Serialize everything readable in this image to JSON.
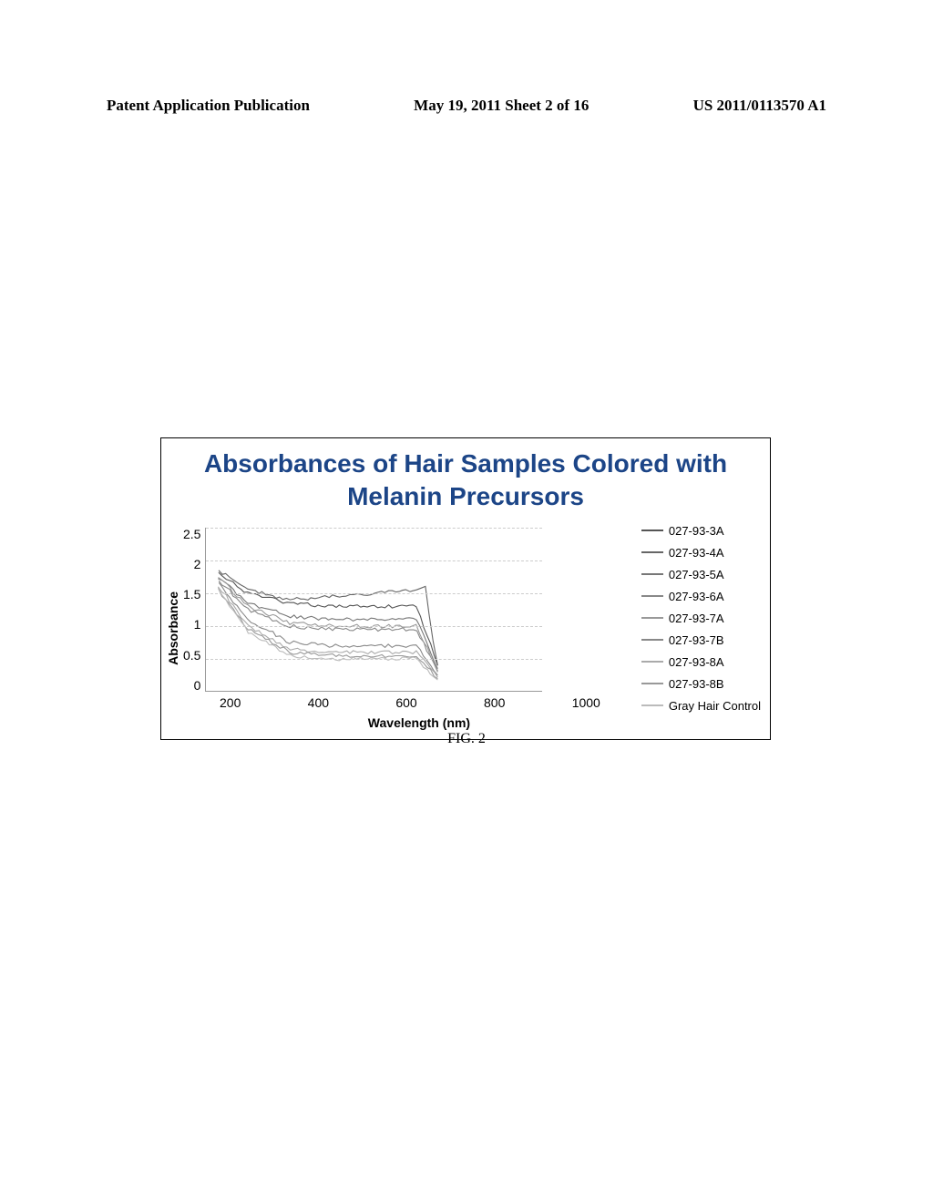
{
  "header": {
    "left": "Patent Application Publication",
    "center": "May 19, 2011  Sheet 2 of 16",
    "right": "US 2011/0113570 A1"
  },
  "figure": {
    "caption": "FIG. 2",
    "chart": {
      "type": "line",
      "title": "Absorbances of Hair Samples Colored with Melanin Precursors",
      "title_color": "#1c4587",
      "title_fontsize": 28,
      "xlabel": "Wavelength (nm)",
      "ylabel": "Absorbance",
      "label_fontsize": 14,
      "xlim": [
        200,
        1000
      ],
      "ylim": [
        0,
        2.5
      ],
      "xticks": [
        "200",
        "400",
        "600",
        "800",
        "1000"
      ],
      "yticks": [
        "2.5",
        "2",
        "1.5",
        "1",
        "0.5",
        "0"
      ],
      "xtick_values": [
        200,
        400,
        600,
        800,
        1000
      ],
      "ytick_values": [
        2.5,
        2,
        1.5,
        1,
        0.5,
        0
      ],
      "grid_color": "#cccccc",
      "border_color": "#000000",
      "background_color": "#ffffff",
      "series": [
        {
          "label": "027-93-3A",
          "color": "#555555",
          "data": [
            [
              230,
              1.8
            ],
            [
              300,
              1.5
            ],
            [
              400,
              1.35
            ],
            [
              500,
              1.3
            ],
            [
              600,
              1.3
            ],
            [
              700,
              1.3
            ],
            [
              750,
              0.4
            ]
          ]
        },
        {
          "label": "027-93-4A",
          "color": "#666666",
          "data": [
            [
              230,
              1.85
            ],
            [
              300,
              1.55
            ],
            [
              400,
              1.4
            ],
            [
              500,
              1.45
            ],
            [
              600,
              1.5
            ],
            [
              700,
              1.55
            ],
            [
              720,
              1.6
            ],
            [
              750,
              0.4
            ]
          ]
        },
        {
          "label": "027-93-5A",
          "color": "#777777",
          "data": [
            [
              230,
              1.75
            ],
            [
              300,
              1.35
            ],
            [
              400,
              1.15
            ],
            [
              500,
              1.1
            ],
            [
              600,
              1.1
            ],
            [
              700,
              1.1
            ],
            [
              750,
              0.35
            ]
          ]
        },
        {
          "label": "027-93-6A",
          "color": "#888888",
          "data": [
            [
              230,
              1.7
            ],
            [
              300,
              1.25
            ],
            [
              400,
              1.0
            ],
            [
              500,
              0.95
            ],
            [
              600,
              0.95
            ],
            [
              700,
              0.95
            ],
            [
              750,
              0.3
            ]
          ]
        },
        {
          "label": "027-93-7A",
          "color": "#999999",
          "data": [
            [
              230,
              1.75
            ],
            [
              300,
              1.3
            ],
            [
              400,
              1.05
            ],
            [
              500,
              1.0
            ],
            [
              600,
              1.0
            ],
            [
              700,
              1.0
            ],
            [
              750,
              0.32
            ]
          ]
        },
        {
          "label": "027-93-7B",
          "color": "#888888",
          "data": [
            [
              230,
              1.65
            ],
            [
              300,
              1.1
            ],
            [
              400,
              0.75
            ],
            [
              500,
              0.7
            ],
            [
              600,
              0.7
            ],
            [
              700,
              0.7
            ],
            [
              750,
              0.25
            ]
          ]
        },
        {
          "label": "027-93-8A",
          "color": "#aaaaaa",
          "data": [
            [
              230,
              1.6
            ],
            [
              300,
              1.0
            ],
            [
              400,
              0.65
            ],
            [
              500,
              0.6
            ],
            [
              600,
              0.6
            ],
            [
              700,
              0.6
            ],
            [
              750,
              0.22
            ]
          ]
        },
        {
          "label": "027-93-8B",
          "color": "#999999",
          "data": [
            [
              230,
              1.55
            ],
            [
              300,
              0.95
            ],
            [
              400,
              0.6
            ],
            [
              500,
              0.55
            ],
            [
              600,
              0.55
            ],
            [
              700,
              0.55
            ],
            [
              750,
              0.2
            ]
          ]
        },
        {
          "label": "Gray Hair Control",
          "color": "#bbbbbb",
          "data": [
            [
              230,
              1.55
            ],
            [
              300,
              0.9
            ],
            [
              400,
              0.55
            ],
            [
              500,
              0.5
            ],
            [
              600,
              0.5
            ],
            [
              700,
              0.5
            ],
            [
              750,
              0.18
            ]
          ]
        }
      ]
    }
  }
}
